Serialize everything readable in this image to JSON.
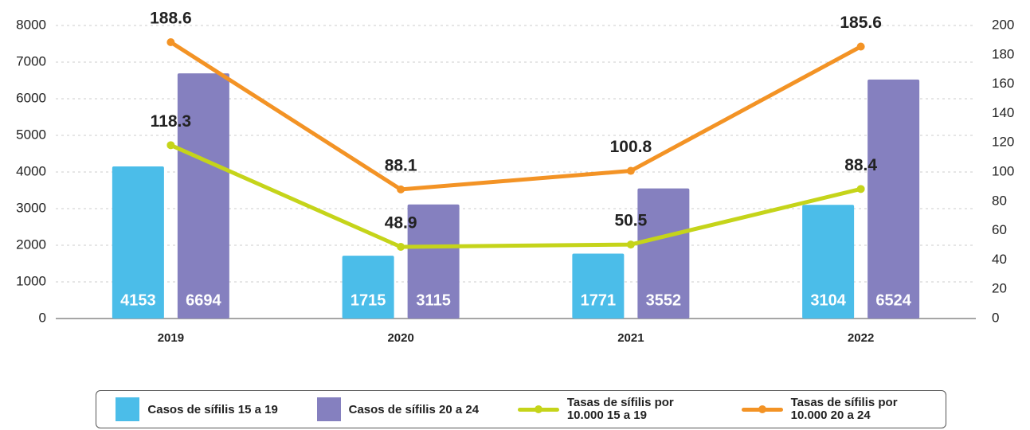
{
  "chart_data": {
    "type": "bar_line",
    "categories": [
      "2019",
      "2020",
      "2021",
      "2022"
    ],
    "series": [
      {
        "name": "Casos de sífilis 15 a 19",
        "type": "bar",
        "color": "#4bbde9",
        "values": [
          4153,
          1715,
          1771,
          3104
        ]
      },
      {
        "name": "Casos de sífilis 20 a 24",
        "type": "bar",
        "color": "#8580bf",
        "values": [
          6694,
          3115,
          3552,
          6524
        ]
      },
      {
        "name": "Tasas de sífilis por 10.000 15 a 19",
        "type": "line",
        "axis": "y2",
        "color": "#c5d41a",
        "values": [
          118.3,
          48.9,
          50.5,
          88.4
        ]
      },
      {
        "name": "Tasas de sífilis por 10.000 20 a 24",
        "type": "line",
        "axis": "y2",
        "color": "#f39325",
        "values": [
          188.6,
          88.1,
          100.8,
          185.6
        ]
      }
    ],
    "ylim": [
      0,
      8000
    ],
    "yticks": [
      0,
      1000,
      2000,
      3000,
      4000,
      5000,
      6000,
      7000,
      8000
    ],
    "y2lim": [
      0,
      200
    ],
    "y2ticks": [
      0,
      20,
      40,
      60,
      80,
      100,
      120,
      140,
      160,
      180,
      200
    ],
    "grid": true,
    "legend": "bottom"
  }
}
